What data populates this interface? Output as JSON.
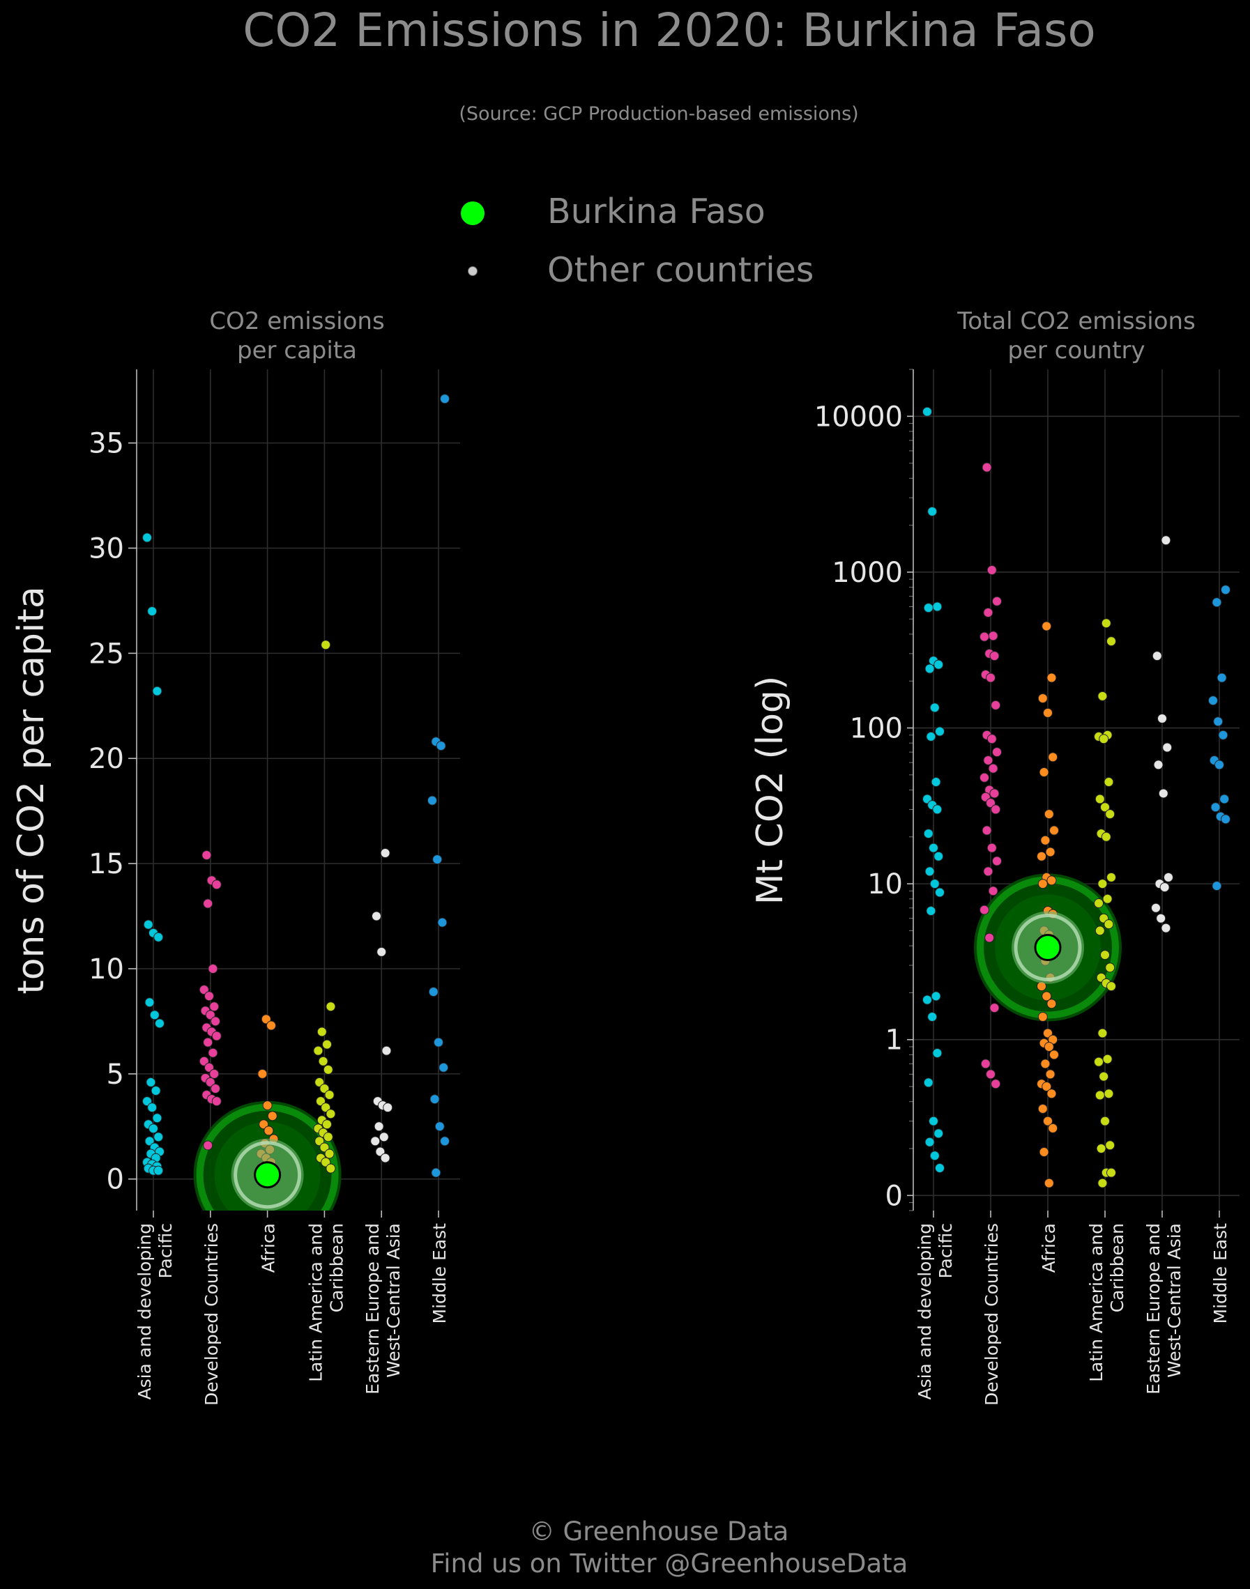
{
  "title": "CO2 Emissions in 2020: Burkina Faso",
  "subtitle": "(Source: GCP Production-based emissions)",
  "legend": {
    "items": [
      {
        "label": "Burkina Faso",
        "color": "#00ff00"
      },
      {
        "label": "Other countries",
        "color": "#cccccc"
      }
    ]
  },
  "footer": {
    "line1": "© Greenhouse Data",
    "line2": "Find us on Twitter @GreenhouseData"
  },
  "colors": {
    "Asia and developing Pacific": "#00c8dc",
    "Developed Countries": "#e8409a",
    "Africa": "#ff8c1e",
    "Latin America and Caribbean": "#c8dc14",
    "Eastern Europe and West-Central Asia": "#e6e6e6",
    "Middle East": "#1e96dc",
    "highlight": "#00ff00"
  },
  "chart_data": [
    {
      "type": "scatter",
      "title": "CO2 emissions\nper capita",
      "ylabel": "tons of CO2 per capita",
      "ylim": [
        -1.5,
        38.5
      ],
      "yticks": [
        0,
        5,
        10,
        15,
        20,
        25,
        30,
        35
      ],
      "ytick_labels": [
        "0",
        "5",
        "10",
        "15",
        "20",
        "25",
        "30",
        "35"
      ],
      "categories": [
        "Asia and developing\nPacific",
        "Developed Countries",
        "Africa",
        "Latin America and\nCaribbean",
        "Eastern Europe and\nWest-Central Asia",
        "Middle East"
      ],
      "grid": true,
      "highlight": {
        "name": "Burkina Faso",
        "category": "Africa",
        "value": 0.2
      },
      "series": [
        {
          "name": "Asia and developing Pacific",
          "values": [
            30.5,
            27.0,
            23.2,
            12.1,
            11.7,
            11.5,
            8.4,
            7.8,
            7.4,
            4.6,
            4.2,
            3.7,
            3.4,
            2.9,
            2.6,
            2.4,
            2.0,
            1.8,
            1.5,
            1.3,
            1.2,
            1.0,
            0.8,
            0.7,
            0.6,
            0.5,
            0.4,
            0.4
          ]
        },
        {
          "name": "Developed Countries",
          "values": [
            15.4,
            14.2,
            14.0,
            13.1,
            10.0,
            9.0,
            8.7,
            8.2,
            8.0,
            7.8,
            7.5,
            7.2,
            7.0,
            6.8,
            6.5,
            6.0,
            5.6,
            5.3,
            5.0,
            4.8,
            4.6,
            4.3,
            4.0,
            3.8,
            3.7,
            1.6
          ]
        },
        {
          "name": "Africa",
          "values": [
            7.6,
            7.3,
            5.0,
            3.5,
            3.0,
            2.6,
            2.3,
            1.9,
            1.7,
            1.4,
            1.2,
            1.0,
            0.8,
            0.6,
            0.5,
            0.4,
            0.3,
            0.3,
            0.2,
            0.2,
            0.1,
            0.1
          ]
        },
        {
          "name": "Latin America and Caribbean",
          "values": [
            25.4,
            8.2,
            7.0,
            6.4,
            6.1,
            5.6,
            5.2,
            4.6,
            4.3,
            4.0,
            3.7,
            3.4,
            3.1,
            2.8,
            2.6,
            2.4,
            2.2,
            2.0,
            1.8,
            1.5,
            1.2,
            1.0,
            0.8,
            0.5
          ]
        },
        {
          "name": "Eastern Europe and West-Central Asia",
          "values": [
            15.5,
            12.5,
            10.8,
            6.1,
            3.7,
            3.5,
            3.4,
            2.5,
            2.0,
            1.8,
            1.3,
            1.0
          ]
        },
        {
          "name": "Middle East",
          "values": [
            37.1,
            20.8,
            20.6,
            18.0,
            15.2,
            12.2,
            8.9,
            6.5,
            5.3,
            3.8,
            2.5,
            1.8,
            0.3
          ]
        }
      ]
    },
    {
      "type": "scatter",
      "title": "Total CO2 emissions\nper country",
      "ylabel": "Mt CO2 (log)",
      "yscale": "log",
      "ylim": [
        0.08,
        20000
      ],
      "yticks": [
        0.1,
        1,
        10,
        100,
        1000,
        10000
      ],
      "ytick_labels": [
        "0",
        "1",
        "10",
        "100",
        "1000",
        "10000"
      ],
      "categories": [
        "Asia and developing\nPacific",
        "Developed Countries",
        "Africa",
        "Latin America and\nCaribbean",
        "Eastern Europe and\nWest-Central Asia",
        "Middle East"
      ],
      "grid": true,
      "highlight": {
        "name": "Burkina Faso",
        "category": "Africa",
        "value": 3.9
      },
      "series": [
        {
          "name": "Asia and developing Pacific",
          "values": [
            10700,
            2450,
            600,
            590,
            270,
            255,
            240,
            135,
            95,
            88,
            45,
            35,
            32,
            30,
            21,
            17,
            15,
            12,
            10,
            8.8,
            6.7,
            1.9,
            1.8,
            1.4,
            0.82,
            0.53,
            0.3,
            0.25,
            0.22,
            0.18,
            0.15
          ]
        },
        {
          "name": "Developed Countries",
          "values": [
            4700,
            1030,
            650,
            550,
            390,
            385,
            300,
            290,
            220,
            210,
            140,
            90,
            85,
            70,
            62,
            55,
            48,
            40,
            38,
            36,
            33,
            30,
            22,
            17,
            14,
            12,
            9,
            6.8,
            4.5,
            1.6,
            0.7,
            0.6,
            0.52
          ]
        },
        {
          "name": "Africa",
          "values": [
            450,
            210,
            155,
            125,
            65,
            52,
            28,
            22,
            19,
            16,
            15,
            11,
            10.5,
            10,
            6.7,
            6.4,
            5,
            4.7,
            3.6,
            3.2,
            2.5,
            2.2,
            1.9,
            1.7,
            1.4,
            1.1,
            1.0,
            0.95,
            0.9,
            0.8,
            0.7,
            0.6,
            0.52,
            0.5,
            0.45,
            0.36,
            0.3,
            0.27,
            0.19,
            0.12
          ]
        },
        {
          "name": "Latin America and Caribbean",
          "values": [
            470,
            360,
            160,
            90,
            88,
            85,
            45,
            35,
            31,
            28,
            21,
            20,
            11,
            10,
            8,
            7.5,
            6,
            5.5,
            5,
            3.5,
            2.9,
            2.5,
            2.3,
            2.2,
            1.1,
            0.75,
            0.72,
            0.58,
            0.45,
            0.44,
            0.3,
            0.21,
            0.2,
            0.14,
            0.14,
            0.12
          ]
        },
        {
          "name": "Eastern Europe and West-Central Asia",
          "values": [
            1600,
            290,
            115,
            75,
            58,
            38,
            11,
            10,
            9.5,
            7,
            6,
            5.2
          ]
        },
        {
          "name": "Middle East",
          "values": [
            770,
            640,
            210,
            150,
            110,
            90,
            62,
            58,
            35,
            31,
            27,
            26,
            9.7
          ]
        }
      ]
    }
  ]
}
